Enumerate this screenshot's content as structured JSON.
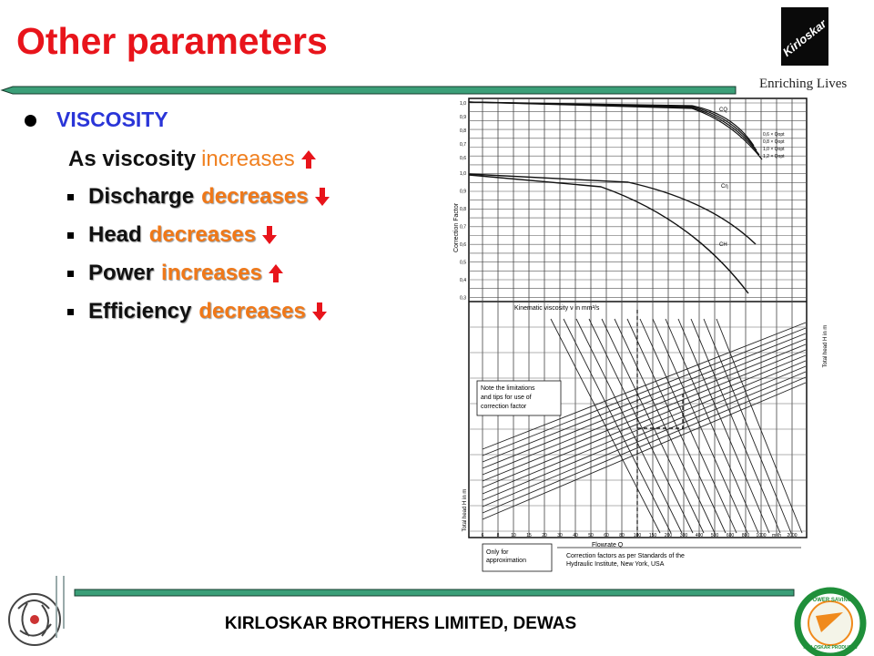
{
  "header": {
    "title": "Other parameters"
  },
  "logo": {
    "brand": "Kirloskar",
    "tagline": "Enriching Lives"
  },
  "bullets": {
    "heading": "VISCOSITY",
    "intro": {
      "text": "As viscosity",
      "change": "increases"
    },
    "items": [
      {
        "label": "Discharge",
        "change": "decreases"
      },
      {
        "label": "Head",
        "change": "decreases"
      },
      {
        "label": "Power",
        "change": "increases"
      },
      {
        "label": "Efficiency",
        "change": "decreases"
      }
    ]
  },
  "nomogram": {
    "y_axis_label": "Correction Factor",
    "upper_ticks": [
      "1,0",
      "0,9",
      "0,8",
      "0,7",
      "0,6"
    ],
    "lower_ticks": [
      "1,0",
      "0,9",
      "0,8",
      "0,7",
      "0,6",
      "0,5",
      "0,4",
      "0,3"
    ],
    "curve_labels": [
      "CQ",
      "Cη",
      "CH"
    ],
    "flow_legend": [
      "0,6 × Qopt",
      "0,8 × Qopt",
      "1,0 × Qopt",
      "1,2 × Qopt"
    ],
    "viscosity_label": "Kinematic viscosity ν in mm²/s",
    "note": [
      "Note the limitations",
      "and tips for use of",
      "correction factor"
    ],
    "flow_ticks": [
      "6",
      "8",
      "10",
      "15",
      "20",
      "30",
      "40",
      "50",
      "60",
      "80",
      "100",
      "150",
      "200",
      "300",
      "400",
      "500",
      "600",
      "800",
      "1000",
      "m³/h",
      "2000"
    ],
    "x_axis_label": "Flowrate Q",
    "head_label": "Total head H in m",
    "footnote_left": [
      "Only for",
      "approximation"
    ],
    "footnote_right": [
      "Correction factors as per Standards of the",
      "Hydraulic Institute, New York, USA"
    ]
  },
  "badge": {
    "top": "POWER SAVING",
    "bottom": "KIRLOSKAR PRODUCTS"
  },
  "footer": {
    "text": "KIRLOSKAR BROTHERS LIMITED, DEWAS"
  }
}
